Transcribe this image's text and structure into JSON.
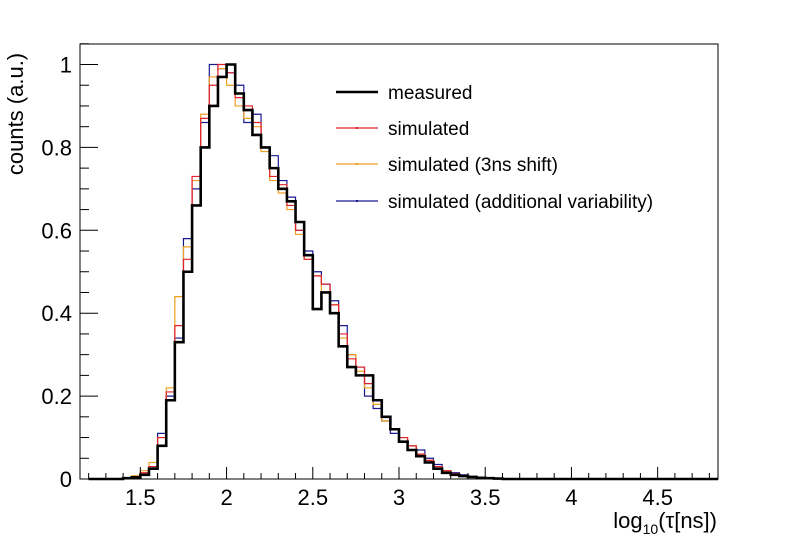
{
  "chart_data": {
    "type": "line",
    "title": "",
    "xlabel": "log10(τ[ns])",
    "xlabel_base": "log",
    "xlabel_sub": "10",
    "xlabel_rest": "(τ[ns])",
    "ylabel": "counts (a.u.)",
    "xlim": [
      1.15,
      4.85
    ],
    "ylim": [
      0,
      1.05
    ],
    "x_ticks": [
      1.5,
      2,
      2.5,
      3,
      3.5,
      4,
      4.5
    ],
    "x_tick_labels": [
      "1.5",
      "2",
      "2.5",
      "3",
      "3.5",
      "4",
      "4.5"
    ],
    "y_ticks": [
      0,
      0.2,
      0.4,
      0.6,
      0.8,
      1
    ],
    "y_tick_labels": [
      "0",
      "0.2",
      "0.4",
      "0.6",
      "0.8",
      "1"
    ],
    "bin_width": 0.05,
    "legend_position": "top-right",
    "series": [
      {
        "name": "measured",
        "color": "#000000",
        "style": "thick",
        "bins": [
          [
            1.2,
            0.0
          ],
          [
            1.25,
            0.0
          ],
          [
            1.3,
            0.0
          ],
          [
            1.35,
            0.0
          ],
          [
            1.4,
            0.002
          ],
          [
            1.45,
            0.004
          ],
          [
            1.5,
            0.01
          ],
          [
            1.55,
            0.025
          ],
          [
            1.6,
            0.08
          ],
          [
            1.65,
            0.19
          ],
          [
            1.7,
            0.33
          ],
          [
            1.75,
            0.5
          ],
          [
            1.8,
            0.66
          ],
          [
            1.85,
            0.8
          ],
          [
            1.9,
            0.9
          ],
          [
            1.95,
            0.97
          ],
          [
            2.0,
            1.0
          ],
          [
            2.05,
            0.93
          ],
          [
            2.1,
            0.89
          ],
          [
            2.15,
            0.83
          ],
          [
            2.2,
            0.8
          ],
          [
            2.25,
            0.75
          ],
          [
            2.3,
            0.7
          ],
          [
            2.35,
            0.67
          ],
          [
            2.4,
            0.62
          ],
          [
            2.45,
            0.54
          ],
          [
            2.5,
            0.41
          ],
          [
            2.55,
            0.45
          ],
          [
            2.6,
            0.4
          ],
          [
            2.65,
            0.32
          ],
          [
            2.7,
            0.27
          ],
          [
            2.75,
            0.25
          ],
          [
            2.8,
            0.25
          ],
          [
            2.85,
            0.19
          ],
          [
            2.9,
            0.15
          ],
          [
            2.95,
            0.12
          ],
          [
            3.0,
            0.09
          ],
          [
            3.05,
            0.07
          ],
          [
            3.1,
            0.055
          ],
          [
            3.15,
            0.04
          ],
          [
            3.2,
            0.025
          ],
          [
            3.25,
            0.015
          ],
          [
            3.3,
            0.01
          ],
          [
            3.35,
            0.007
          ],
          [
            3.4,
            0.005
          ],
          [
            3.45,
            0.003
          ],
          [
            3.5,
            0.002
          ],
          [
            3.55,
            0.001
          ],
          [
            3.6,
            0.0
          ],
          [
            3.65,
            0.0
          ],
          [
            3.7,
            0.0
          ],
          [
            3.75,
            0.0
          ],
          [
            3.8,
            0.0
          ],
          [
            3.85,
            0.0
          ],
          [
            3.9,
            0.0
          ],
          [
            3.95,
            0.0
          ],
          [
            4.0,
            0.0
          ],
          [
            4.05,
            0.0
          ],
          [
            4.1,
            0.0
          ],
          [
            4.15,
            0.0
          ],
          [
            4.2,
            0.0
          ],
          [
            4.25,
            0.0
          ],
          [
            4.3,
            0.0
          ],
          [
            4.35,
            0.0
          ],
          [
            4.4,
            0.0
          ],
          [
            4.45,
            0.0
          ],
          [
            4.5,
            0.0
          ],
          [
            4.55,
            0.0
          ],
          [
            4.6,
            0.0
          ],
          [
            4.65,
            0.0
          ],
          [
            4.7,
            0.0
          ],
          [
            4.75,
            0.0
          ],
          [
            4.8,
            0.0
          ]
        ]
      },
      {
        "name": "simulated",
        "color": "#e0202a",
        "style": "thin",
        "bins": [
          [
            1.2,
            0.0
          ],
          [
            1.25,
            0.0
          ],
          [
            1.3,
            0.0
          ],
          [
            1.35,
            0.0
          ],
          [
            1.4,
            0.002
          ],
          [
            1.45,
            0.006
          ],
          [
            1.5,
            0.015
          ],
          [
            1.55,
            0.03
          ],
          [
            1.6,
            0.1
          ],
          [
            1.65,
            0.21
          ],
          [
            1.7,
            0.37
          ],
          [
            1.75,
            0.53
          ],
          [
            1.8,
            0.73
          ],
          [
            1.85,
            0.87
          ],
          [
            1.9,
            0.95
          ],
          [
            1.95,
            1.0
          ],
          [
            2.0,
            0.98
          ],
          [
            2.05,
            0.92
          ],
          [
            2.1,
            0.9
          ],
          [
            2.15,
            0.86
          ],
          [
            2.2,
            0.8
          ],
          [
            2.25,
            0.73
          ],
          [
            2.3,
            0.71
          ],
          [
            2.35,
            0.66
          ],
          [
            2.4,
            0.6
          ],
          [
            2.45,
            0.53
          ],
          [
            2.5,
            0.49
          ],
          [
            2.55,
            0.47
          ],
          [
            2.6,
            0.42
          ],
          [
            2.65,
            0.35
          ],
          [
            2.7,
            0.29
          ],
          [
            2.75,
            0.27
          ],
          [
            2.8,
            0.23
          ],
          [
            2.85,
            0.19
          ],
          [
            2.9,
            0.15
          ],
          [
            2.95,
            0.12
          ],
          [
            3.0,
            0.1
          ],
          [
            3.05,
            0.08
          ],
          [
            3.1,
            0.06
          ],
          [
            3.15,
            0.045
          ],
          [
            3.2,
            0.03
          ],
          [
            3.25,
            0.02
          ],
          [
            3.3,
            0.013
          ],
          [
            3.35,
            0.008
          ],
          [
            3.4,
            0.005
          ],
          [
            3.45,
            0.003
          ],
          [
            3.5,
            0.002
          ],
          [
            3.55,
            0.001
          ],
          [
            3.6,
            0.0
          ],
          [
            3.65,
            0.0
          ],
          [
            3.7,
            0.0
          ],
          [
            3.75,
            0.0
          ],
          [
            3.8,
            0.0
          ],
          [
            3.85,
            0.0
          ],
          [
            3.9,
            0.0
          ],
          [
            3.95,
            0.0
          ],
          [
            4.0,
            0.0
          ],
          [
            4.05,
            0.0
          ],
          [
            4.1,
            0.0
          ],
          [
            4.15,
            0.0
          ],
          [
            4.2,
            0.0
          ],
          [
            4.25,
            0.0
          ],
          [
            4.3,
            0.0
          ],
          [
            4.35,
            0.0
          ],
          [
            4.4,
            0.0
          ],
          [
            4.45,
            0.0
          ],
          [
            4.5,
            0.0
          ],
          [
            4.55,
            0.0
          ],
          [
            4.6,
            0.0
          ],
          [
            4.65,
            0.0
          ],
          [
            4.7,
            0.0
          ],
          [
            4.75,
            0.0
          ],
          [
            4.8,
            0.0
          ]
        ]
      },
      {
        "name": "simulated (3ns shift)",
        "color": "#f0a020",
        "style": "thin",
        "bins": [
          [
            1.2,
            0.0
          ],
          [
            1.25,
            0.0
          ],
          [
            1.3,
            0.0
          ],
          [
            1.35,
            0.0
          ],
          [
            1.4,
            0.003
          ],
          [
            1.45,
            0.008
          ],
          [
            1.5,
            0.02
          ],
          [
            1.55,
            0.04
          ],
          [
            1.6,
            0.1
          ],
          [
            1.65,
            0.22
          ],
          [
            1.7,
            0.44
          ],
          [
            1.75,
            0.56
          ],
          [
            1.8,
            0.72
          ],
          [
            1.85,
            0.88
          ],
          [
            1.9,
            0.97
          ],
          [
            1.95,
            0.99
          ],
          [
            2.0,
            0.95
          ],
          [
            2.05,
            0.9
          ],
          [
            2.1,
            0.87
          ],
          [
            2.15,
            0.85
          ],
          [
            2.2,
            0.79
          ],
          [
            2.25,
            0.72
          ],
          [
            2.3,
            0.69
          ],
          [
            2.35,
            0.65
          ],
          [
            2.4,
            0.59
          ],
          [
            2.45,
            0.53
          ],
          [
            2.5,
            0.49
          ],
          [
            2.55,
            0.45
          ],
          [
            2.6,
            0.42
          ],
          [
            2.65,
            0.34
          ],
          [
            2.7,
            0.3
          ],
          [
            2.75,
            0.26
          ],
          [
            2.8,
            0.22
          ],
          [
            2.85,
            0.18
          ],
          [
            2.9,
            0.14
          ],
          [
            2.95,
            0.12
          ],
          [
            3.0,
            0.1
          ],
          [
            3.05,
            0.08
          ],
          [
            3.1,
            0.06
          ],
          [
            3.15,
            0.045
          ],
          [
            3.2,
            0.03
          ],
          [
            3.25,
            0.02
          ],
          [
            3.3,
            0.013
          ],
          [
            3.35,
            0.008
          ],
          [
            3.4,
            0.005
          ],
          [
            3.45,
            0.003
          ],
          [
            3.5,
            0.002
          ],
          [
            3.55,
            0.001
          ],
          [
            3.6,
            0.0
          ],
          [
            3.65,
            0.0
          ],
          [
            3.7,
            0.0
          ],
          [
            3.75,
            0.0
          ],
          [
            3.8,
            0.0
          ],
          [
            3.85,
            0.0
          ],
          [
            3.9,
            0.0
          ],
          [
            3.95,
            0.0
          ],
          [
            4.0,
            0.0
          ],
          [
            4.05,
            0.0
          ],
          [
            4.1,
            0.0
          ],
          [
            4.15,
            0.0
          ],
          [
            4.2,
            0.0
          ],
          [
            4.25,
            0.0
          ],
          [
            4.3,
            0.0
          ],
          [
            4.35,
            0.0
          ],
          [
            4.4,
            0.0
          ],
          [
            4.45,
            0.0
          ],
          [
            4.5,
            0.0
          ],
          [
            4.55,
            0.0
          ],
          [
            4.6,
            0.0
          ],
          [
            4.65,
            0.0
          ],
          [
            4.7,
            0.0
          ],
          [
            4.75,
            0.0
          ],
          [
            4.8,
            0.0
          ]
        ]
      },
      {
        "name": "simulated (additional variability)",
        "color": "#1a1a90",
        "style": "thin",
        "bins": [
          [
            1.2,
            0.0
          ],
          [
            1.25,
            0.0
          ],
          [
            1.3,
            0.0
          ],
          [
            1.35,
            0.0
          ],
          [
            1.4,
            0.002
          ],
          [
            1.45,
            0.005
          ],
          [
            1.5,
            0.012
          ],
          [
            1.55,
            0.03
          ],
          [
            1.6,
            0.11
          ],
          [
            1.65,
            0.2
          ],
          [
            1.7,
            0.34
          ],
          [
            1.75,
            0.58
          ],
          [
            1.8,
            0.7
          ],
          [
            1.85,
            0.86
          ],
          [
            1.9,
            1.0
          ],
          [
            1.95,
            0.99
          ],
          [
            2.0,
            0.98
          ],
          [
            2.05,
            0.95
          ],
          [
            2.1,
            0.86
          ],
          [
            2.15,
            0.88
          ],
          [
            2.2,
            0.8
          ],
          [
            2.25,
            0.78
          ],
          [
            2.3,
            0.72
          ],
          [
            2.35,
            0.68
          ],
          [
            2.4,
            0.6
          ],
          [
            2.45,
            0.55
          ],
          [
            2.5,
            0.5
          ],
          [
            2.55,
            0.47
          ],
          [
            2.6,
            0.43
          ],
          [
            2.65,
            0.37
          ],
          [
            2.7,
            0.3
          ],
          [
            2.75,
            0.27
          ],
          [
            2.8,
            0.2
          ],
          [
            2.85,
            0.17
          ],
          [
            2.9,
            0.14
          ],
          [
            2.95,
            0.11
          ],
          [
            3.0,
            0.09
          ],
          [
            3.05,
            0.08
          ],
          [
            3.1,
            0.07
          ],
          [
            3.15,
            0.05
          ],
          [
            3.2,
            0.035
          ],
          [
            3.25,
            0.02
          ],
          [
            3.3,
            0.015
          ],
          [
            3.35,
            0.01
          ],
          [
            3.4,
            0.006
          ],
          [
            3.45,
            0.004
          ],
          [
            3.5,
            0.002
          ],
          [
            3.55,
            0.001
          ],
          [
            3.6,
            0.0
          ],
          [
            3.65,
            0.0
          ],
          [
            3.7,
            0.0
          ],
          [
            3.75,
            0.0
          ],
          [
            3.8,
            0.0
          ],
          [
            3.85,
            0.0
          ],
          [
            3.9,
            0.0
          ],
          [
            3.95,
            0.0
          ],
          [
            4.0,
            0.0
          ],
          [
            4.05,
            0.0
          ],
          [
            4.1,
            0.0
          ],
          [
            4.15,
            0.0
          ],
          [
            4.2,
            0.0
          ],
          [
            4.25,
            0.0
          ],
          [
            4.3,
            0.0
          ],
          [
            4.35,
            0.0
          ],
          [
            4.4,
            0.0
          ],
          [
            4.45,
            0.0
          ],
          [
            4.5,
            0.0
          ],
          [
            4.55,
            0.0
          ],
          [
            4.6,
            0.0
          ],
          [
            4.65,
            0.0
          ],
          [
            4.7,
            0.0
          ],
          [
            4.75,
            0.0
          ],
          [
            4.8,
            0.0
          ]
        ]
      }
    ]
  }
}
